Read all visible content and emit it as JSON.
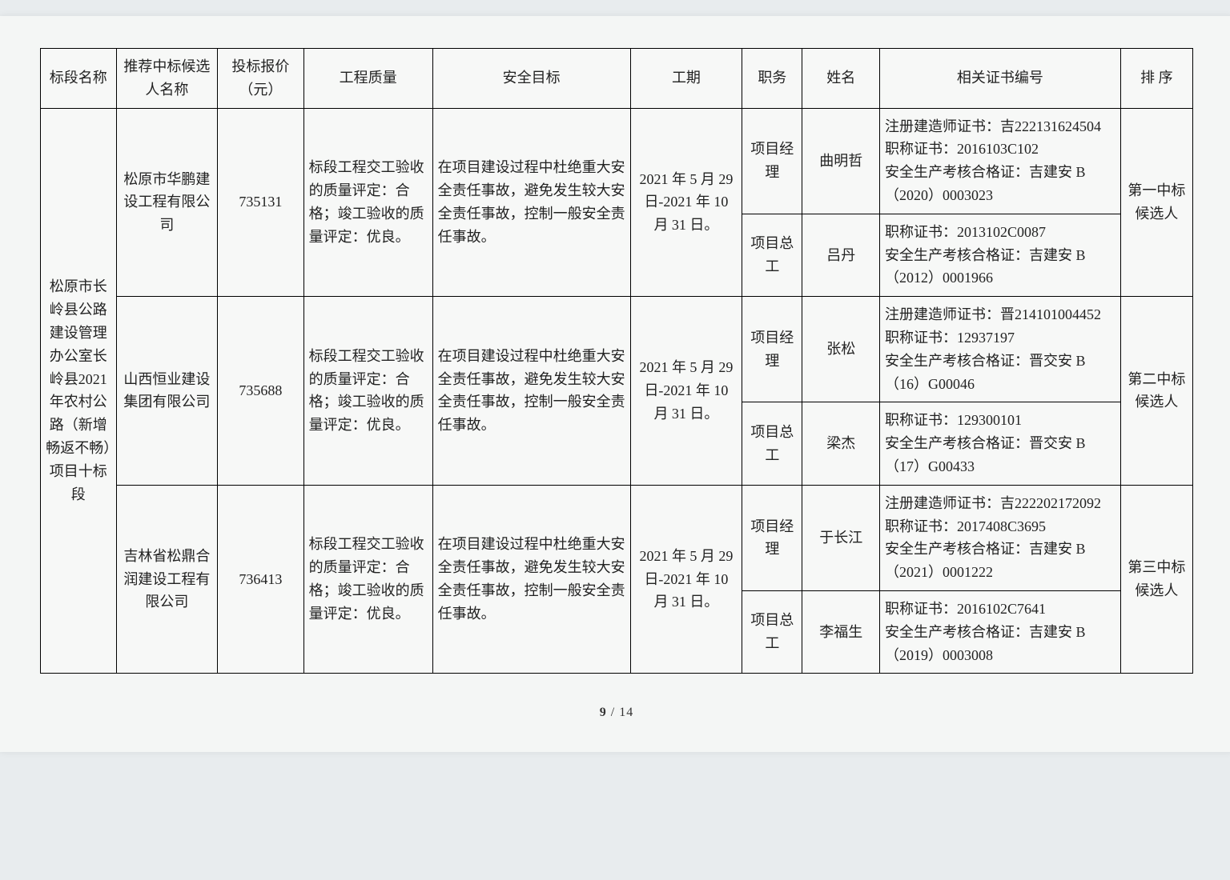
{
  "headers": [
    "标段名称",
    "推荐中标候选人名称",
    "投标报价（元）",
    "工程质量",
    "安全目标",
    "工期",
    "职务",
    "姓名",
    "相关证书编号",
    "排 序"
  ],
  "section_name": "松原市长岭县公路建设管理办公室长岭县2021年农村公路（新增畅返不畅）项目十标段",
  "quality_text": "标段工程交工验收的质量评定：合格；竣工验收的质量评定：优良。",
  "safety_text": "在项目建设过程中杜绝重大安全责任事故，避免发生较大安全责任事故，控制一般安全责任事故。",
  "period_text": "2021 年 5 月 29 日-2021 年 10 月 31 日。",
  "candidates": [
    {
      "company": "松原市华鹏建设工程有限公司",
      "price": "735131",
      "rank": "第一中标候选人",
      "people": [
        {
          "role": "项目经理",
          "name": "曲明哲",
          "cert": "注册建造师证书：吉222131624504\n职称证书：2016103C102\n安全生产考核合格证：吉建安 B（2020）0003023"
        },
        {
          "role": "项目总工",
          "name": "吕丹",
          "cert": "职称证书：2013102C0087\n安全生产考核合格证：吉建安 B（2012）0001966"
        }
      ]
    },
    {
      "company": "山西恒业建设集团有限公司",
      "price": "735688",
      "rank": "第二中标候选人",
      "people": [
        {
          "role": "项目经理",
          "name": "张松",
          "cert": "注册建造师证书：晋214101004452\n职称证书：12937197\n安全生产考核合格证：晋交安 B（16）G00046"
        },
        {
          "role": "项目总工",
          "name": "梁杰",
          "cert": "职称证书：129300101\n安全生产考核合格证：晋交安 B（17）G00433"
        }
      ]
    },
    {
      "company": "吉林省松鼎合润建设工程有限公司",
      "price": "736413",
      "rank": "第三中标候选人",
      "people": [
        {
          "role": "项目经理",
          "name": "于长江",
          "cert": "注册建造师证书：吉222202172092\n职称证书：2017408C3695\n安全生产考核合格证：吉建安 B（2021）0001222"
        },
        {
          "role": "项目总工",
          "name": "李福生",
          "cert": "职称证书：2016102C7641\n安全生产考核合格证：吉建安 B（2019）0003008"
        }
      ]
    }
  ],
  "footer": {
    "page": "9",
    "total": "14"
  }
}
